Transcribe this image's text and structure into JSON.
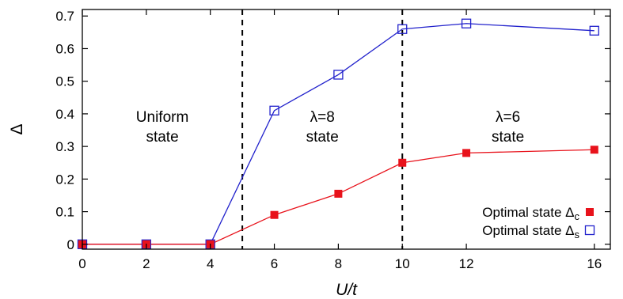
{
  "chart_data": {
    "type": "line",
    "xlabel": "U/t",
    "ylabel": "Δ",
    "xlim": [
      0,
      16.5
    ],
    "ylim": [
      -0.015,
      0.72
    ],
    "xticks": [
      0,
      2,
      4,
      6,
      8,
      10,
      12,
      16
    ],
    "yticks": [
      0,
      0.1,
      0.2,
      0.3,
      0.4,
      0.5,
      0.6,
      0.7
    ],
    "ytick_labels": [
      "0",
      "0.1",
      "0.2",
      "0.3",
      "0.4",
      "0.5",
      "0.6",
      "0.7"
    ],
    "grid": false,
    "legend_position": "bottom-right",
    "series": [
      {
        "key": "delta_c",
        "name": "Optimal state Δ",
        "subscript": "c",
        "color": "#e8121b",
        "marker": "filled-square",
        "x": [
          0,
          2,
          4,
          6,
          8,
          10,
          12,
          16
        ],
        "y": [
          0,
          0,
          0,
          0.09,
          0.155,
          0.25,
          0.28,
          0.29
        ]
      },
      {
        "key": "delta_s",
        "name": "Optimal state Δ",
        "subscript": "s",
        "color": "#2222cc",
        "marker": "open-square",
        "x": [
          0,
          2,
          4,
          6,
          8,
          10,
          12,
          16
        ],
        "y": [
          0,
          0,
          0,
          0.41,
          0.52,
          0.66,
          0.677,
          0.655
        ]
      }
    ],
    "vlines": [
      5,
      10
    ],
    "annotations": [
      {
        "lines": [
          "Uniform",
          "state"
        ],
        "x": 2.5
      },
      {
        "lines": [
          "λ=8",
          "state"
        ],
        "x": 7.5
      },
      {
        "lines": [
          "λ=6",
          "state"
        ],
        "x": 13.3
      }
    ]
  }
}
